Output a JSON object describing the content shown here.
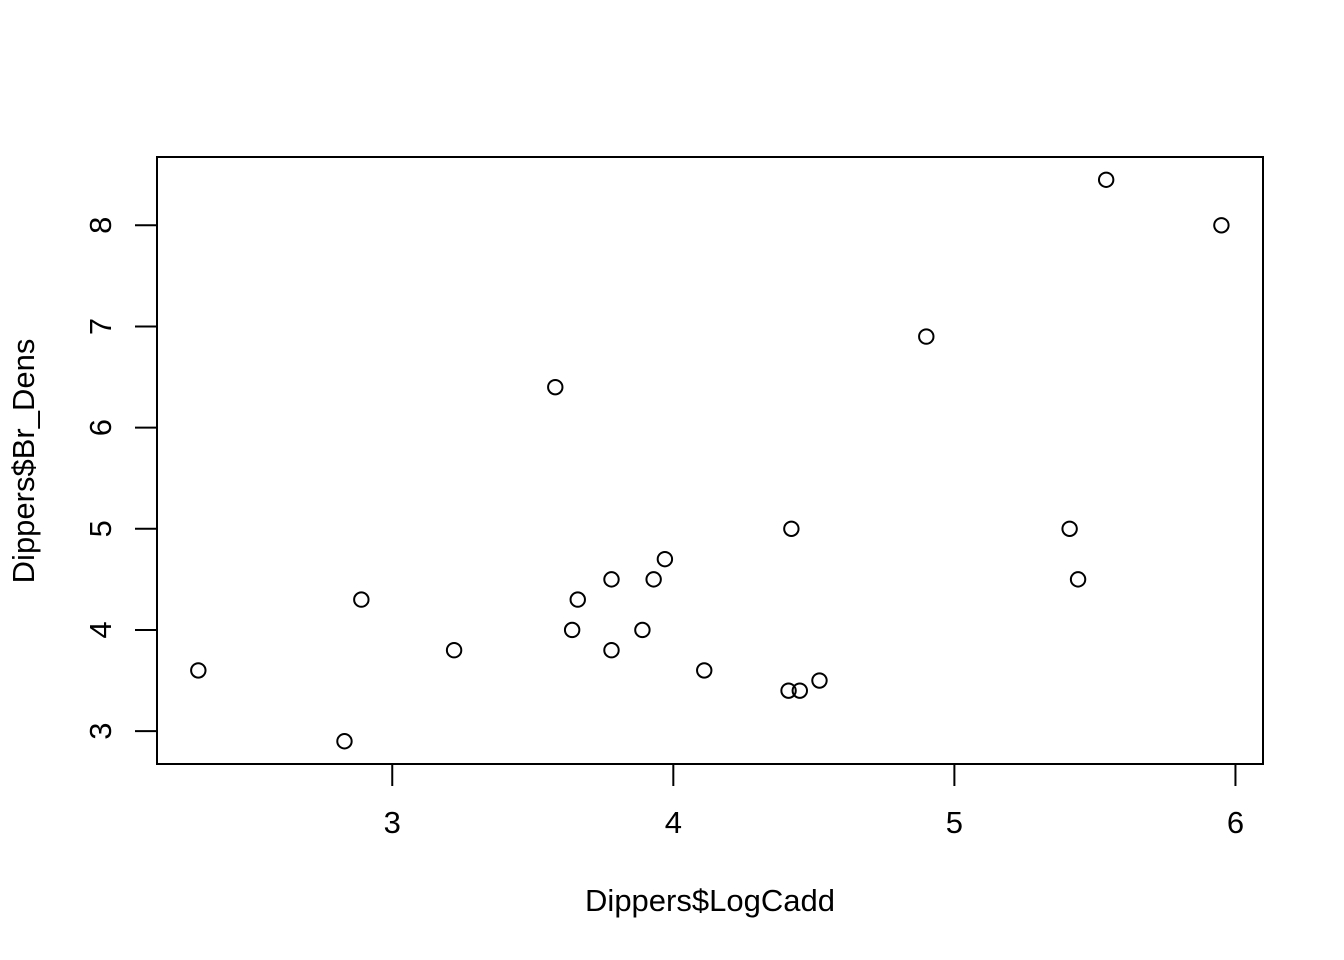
{
  "chart_data": {
    "type": "scatter",
    "title": "",
    "xlabel": "Dippers$LogCadd",
    "ylabel": "Dippers$Br_Dens",
    "xlim": [
      2.163,
      6.098
    ],
    "ylim": [
      2.675,
      8.675
    ],
    "x_ticks": [
      3,
      4,
      5,
      6
    ],
    "y_ticks": [
      3,
      4,
      5,
      6,
      7,
      8
    ],
    "x_tick_labels": [
      "3",
      "4",
      "5",
      "6"
    ],
    "y_tick_labels": [
      "3",
      "4",
      "5",
      "6",
      "7",
      "8"
    ],
    "grid": false,
    "legend": "none",
    "marker": "open-circle",
    "colors": {
      "marker_stroke": "#000000",
      "axis": "#000000",
      "background": "#ffffff"
    },
    "points": [
      {
        "x": 2.31,
        "y": 3.6
      },
      {
        "x": 2.83,
        "y": 2.9
      },
      {
        "x": 2.89,
        "y": 4.3
      },
      {
        "x": 3.22,
        "y": 3.8
      },
      {
        "x": 3.58,
        "y": 6.4
      },
      {
        "x": 3.64,
        "y": 4.0
      },
      {
        "x": 3.66,
        "y": 4.3
      },
      {
        "x": 3.78,
        "y": 3.8
      },
      {
        "x": 3.78,
        "y": 4.5
      },
      {
        "x": 3.89,
        "y": 4.0
      },
      {
        "x": 3.93,
        "y": 4.5
      },
      {
        "x": 3.97,
        "y": 4.7
      },
      {
        "x": 4.11,
        "y": 3.6
      },
      {
        "x": 4.41,
        "y": 3.4
      },
      {
        "x": 4.42,
        "y": 5.0
      },
      {
        "x": 4.45,
        "y": 3.4
      },
      {
        "x": 4.52,
        "y": 3.5
      },
      {
        "x": 4.9,
        "y": 6.9
      },
      {
        "x": 5.41,
        "y": 5.0
      },
      {
        "x": 5.44,
        "y": 4.5
      },
      {
        "x": 5.54,
        "y": 8.45
      },
      {
        "x": 5.95,
        "y": 8.0
      }
    ]
  }
}
